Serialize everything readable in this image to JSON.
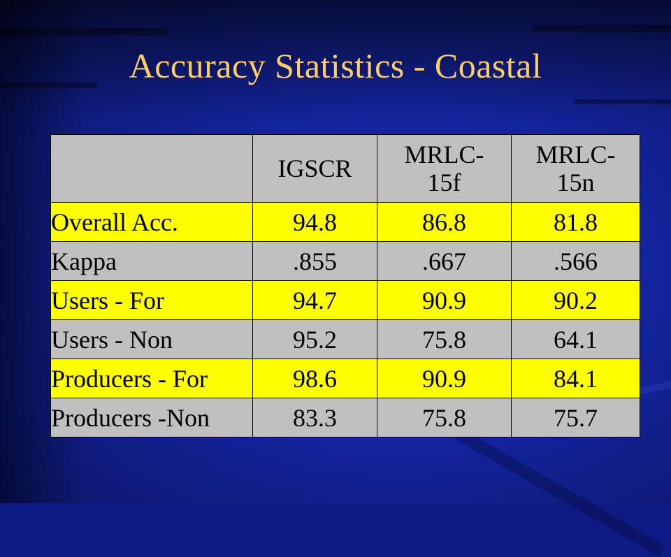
{
  "title": "Accuracy Statistics - Coastal",
  "colors": {
    "background": "#13239a",
    "title": "#ffcc66",
    "highlight_row": "#ffff00",
    "normal_row": "#c0c0c0"
  },
  "table": {
    "headers": [
      {
        "line1": "",
        "line2": ""
      },
      {
        "line1": "IGSCR",
        "line2": ""
      },
      {
        "line1": "MRLC-",
        "line2": "15f"
      },
      {
        "line1": "MRLC-",
        "line2": "15n"
      }
    ],
    "rows": [
      {
        "label": "Overall Acc.",
        "values": [
          "94.8",
          "86.8",
          "81.8"
        ],
        "highlight": true
      },
      {
        "label": "Kappa",
        "values": [
          ".855",
          ".667",
          ".566"
        ],
        "highlight": false
      },
      {
        "label": "Users - For",
        "values": [
          "94.7",
          "90.9",
          "90.2"
        ],
        "highlight": true
      },
      {
        "label": "Users - Non",
        "values": [
          "95.2",
          "75.8",
          "64.1"
        ],
        "highlight": false
      },
      {
        "label": "Producers - For",
        "values": [
          "98.6",
          "90.9",
          "84.1"
        ],
        "highlight": true
      },
      {
        "label": "Producers -Non",
        "values": [
          "83.3",
          "75.8",
          "75.7"
        ],
        "highlight": false
      }
    ]
  }
}
